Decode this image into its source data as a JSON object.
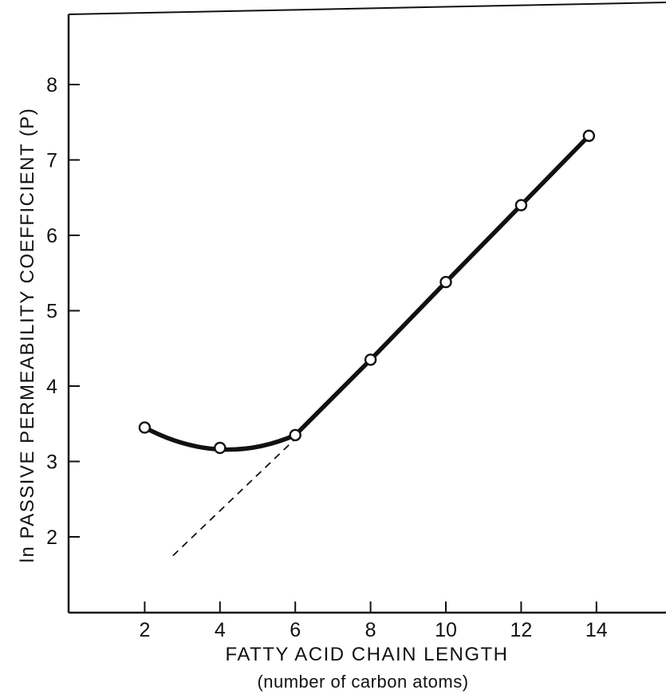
{
  "chart_data": {
    "type": "line",
    "title": "",
    "xlabel": "FATTY ACID CHAIN LENGTH",
    "xlabel_sub": "(number of carbon atoms)",
    "ylabel": "ln PASSIVE PERMEABILITY COEFFICIENT (P)",
    "xlim": [
      0,
      16
    ],
    "ylim": [
      1,
      9
    ],
    "x_ticks": [
      2,
      4,
      6,
      8,
      10,
      12,
      14
    ],
    "y_ticks": [
      2,
      3,
      4,
      5,
      6,
      7,
      8
    ],
    "grid": false,
    "series": [
      {
        "marker": "open-circle",
        "x": [
          2,
          4,
          6,
          8,
          10,
          12,
          13.8
        ],
        "y": [
          3.45,
          3.18,
          3.35,
          4.35,
          5.38,
          6.4,
          7.32
        ]
      }
    ],
    "extrapolation": {
      "style": "dashed",
      "x": [
        2.75,
        6.0
      ],
      "y": [
        1.75,
        3.3
      ]
    }
  }
}
